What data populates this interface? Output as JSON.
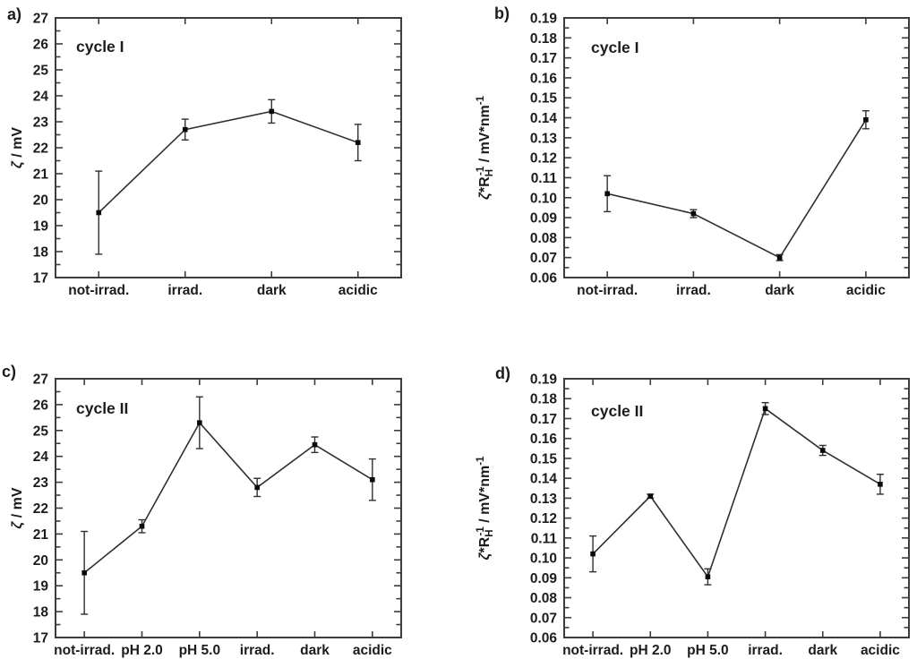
{
  "style": {
    "background": "#ffffff",
    "axis_color": "#3c3c3c",
    "line_color": "#2f2f2f",
    "marker_color": "#0a0a0a",
    "text_color": "#1c1c1c"
  },
  "chart_data": [
    {
      "panel_label": "a)",
      "type": "line",
      "annotation": "cycle I",
      "title": "",
      "xlabel": "",
      "ylabel": "ζ / mV",
      "ylabel_parts": [
        {
          "t": "ζ",
          "italic": true
        },
        {
          "t": " / mV"
        }
      ],
      "categories": [
        "not-irrad.",
        "irrad.",
        "dark",
        "acidic"
      ],
      "series": [
        {
          "name": "zeta potential",
          "values": [
            19.5,
            22.7,
            23.4,
            22.2
          ],
          "errors": [
            1.6,
            0.4,
            0.45,
            0.7
          ]
        }
      ],
      "ylim": [
        17,
        27
      ],
      "ytick_major": 1,
      "ytick_minor": 0.5,
      "ytick_decimals": 0,
      "grid": false,
      "legend": "none",
      "marker": "square",
      "error_caps": true
    },
    {
      "panel_label": "b)",
      "type": "line",
      "annotation": "cycle I",
      "title": "",
      "xlabel": "",
      "ylabel": "ζ*R_H^-1 / mV*nm^-1",
      "ylabel_parts": [
        {
          "t": "ζ",
          "italic": true
        },
        {
          "t": "*R"
        },
        {
          "t": "H",
          "pos": "sub"
        },
        {
          "t": "-1",
          "pos": "sup",
          "stack": true
        },
        {
          "t": " / mV*nm"
        },
        {
          "t": "-1",
          "pos": "sup"
        }
      ],
      "categories": [
        "not-irrad.",
        "irrad.",
        "dark",
        "acidic"
      ],
      "series": [
        {
          "name": "zeta per hydrodynamic radius",
          "values": [
            0.102,
            0.092,
            0.07,
            0.139
          ],
          "errors": [
            0.009,
            0.002,
            0.0015,
            0.0045
          ]
        }
      ],
      "ylim": [
        0.06,
        0.19
      ],
      "ytick_major": 0.01,
      "ytick_minor": 0.005,
      "ytick_decimals": 2,
      "grid": false,
      "legend": "none",
      "marker": "square",
      "error_caps": true
    },
    {
      "panel_label": "c)",
      "type": "line",
      "annotation": "cycle II",
      "title": "",
      "xlabel": "",
      "ylabel": "ζ / mV",
      "ylabel_parts": [
        {
          "t": "ζ",
          "italic": true
        },
        {
          "t": " / mV"
        }
      ],
      "categories": [
        "not-irrad.",
        "pH 2.0",
        "pH 5.0",
        "irrad.",
        "dark",
        "acidic"
      ],
      "series": [
        {
          "name": "zeta potential",
          "values": [
            19.5,
            21.3,
            25.3,
            22.8,
            24.45,
            23.1
          ],
          "errors": [
            1.6,
            0.25,
            1.0,
            0.35,
            0.3,
            0.8
          ]
        }
      ],
      "ylim": [
        17,
        27
      ],
      "ytick_major": 1,
      "ytick_minor": 0.5,
      "ytick_decimals": 0,
      "grid": false,
      "legend": "none",
      "marker": "square",
      "error_caps": true
    },
    {
      "panel_label": "d)",
      "type": "line",
      "annotation": "cycle II",
      "title": "",
      "xlabel": "",
      "ylabel": "ζ*R_H^-1 / mV*nm^-1",
      "ylabel_parts": [
        {
          "t": "ζ",
          "italic": true
        },
        {
          "t": "*R"
        },
        {
          "t": "H",
          "pos": "sub"
        },
        {
          "t": "-1",
          "pos": "sup",
          "stack": true
        },
        {
          "t": " / mV*nm"
        },
        {
          "t": "-1",
          "pos": "sup"
        }
      ],
      "categories": [
        "not-irrad.",
        "pH 2.0",
        "pH 5.0",
        "irrad.",
        "dark",
        "acidic"
      ],
      "series": [
        {
          "name": "zeta per hydrodynamic radius",
          "values": [
            0.102,
            0.131,
            0.0905,
            0.175,
            0.154,
            0.137
          ],
          "errors": [
            0.009,
            0.001,
            0.004,
            0.003,
            0.0025,
            0.005
          ]
        }
      ],
      "ylim": [
        0.06,
        0.19
      ],
      "ytick_major": 0.01,
      "ytick_minor": 0.005,
      "ytick_decimals": 2,
      "grid": false,
      "legend": "none",
      "marker": "square",
      "error_caps": true
    }
  ]
}
